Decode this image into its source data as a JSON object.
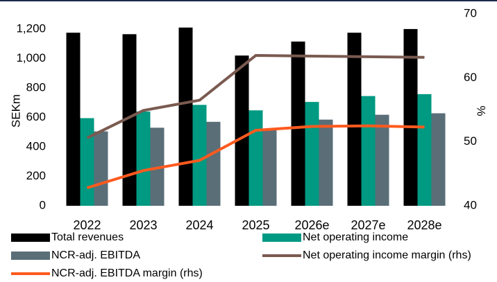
{
  "chart_data": {
    "type": "bar",
    "categories": [
      "2022",
      "2023",
      "2024",
      "2025",
      "2026e",
      "2027e",
      "2028e"
    ],
    "series": [
      {
        "name": "Total revenues",
        "color": "#000000",
        "values": [
          1175,
          1165,
          1210,
          1020,
          1115,
          1175,
          1200
        ]
      },
      {
        "name": "Net operating income",
        "color": "#009982",
        "values": [
          595,
          640,
          685,
          648,
          705,
          745,
          758
        ]
      },
      {
        "name": "NCR-adj. EBITDA",
        "color": "#5a6e78",
        "values": [
          505,
          530,
          570,
          518,
          585,
          618,
          628
        ]
      },
      {
        "name": "Net operating income margin (rhs)",
        "color": "#7a5a50",
        "type": "line",
        "axis": "y2",
        "values": [
          50.6,
          54.9,
          56.5,
          63.5,
          63.4,
          63.3,
          63.2
        ]
      },
      {
        "name": "NCR-adj. EBITDA margin (rhs)",
        "color": "#ff5a1e",
        "type": "line",
        "axis": "y2",
        "values": [
          42.8,
          45.5,
          47.1,
          51.8,
          52.4,
          52.5,
          52.3
        ]
      }
    ],
    "y_label": "SEKm",
    "y2_label": "%",
    "ylim": [
      0,
      1303
    ],
    "yticks": [
      0,
      200,
      400,
      600,
      800,
      {
        "value": 1000,
        "label": "1,000"
      },
      {
        "value": 1200,
        "label": "1,200"
      }
    ],
    "y2lim": [
      40,
      70
    ],
    "y2ticks": [
      40,
      50,
      60,
      70
    ],
    "grid": false,
    "legend": "bottom"
  }
}
